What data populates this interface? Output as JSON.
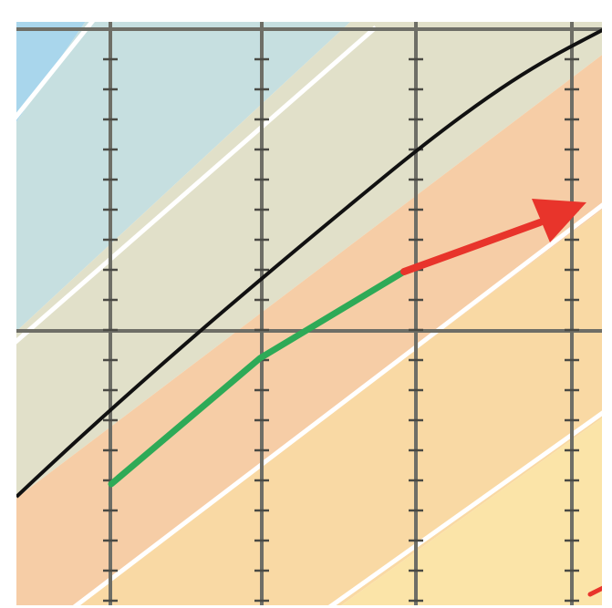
{
  "diagram": {
    "type": "banded-grid-trend",
    "bands": [
      {
        "name": "band-1",
        "color": "#a9d6ec"
      },
      {
        "name": "band-2",
        "color": "#c6dfe0"
      },
      {
        "name": "band-3",
        "color": "#e1e0c9"
      },
      {
        "name": "band-4",
        "color": "#f6cda6"
      },
      {
        "name": "band-5",
        "color": "#f9d9a4"
      },
      {
        "name": "band-6",
        "color": "#fbe4a8"
      },
      {
        "name": "band-7",
        "color": "#fcecaf"
      }
    ],
    "grid": {
      "vertical_lines": 4,
      "horizontal_lines": 2,
      "line_color": "#6e6e66",
      "tick_color": "#4a4a44"
    },
    "curve": {
      "name": "black-boundary-curve",
      "color": "#111111"
    },
    "trend": {
      "name": "green-trend-line",
      "color": "#2eaa57"
    },
    "projection": {
      "name": "red-projection-arrow",
      "color": "#e8342b"
    }
  }
}
